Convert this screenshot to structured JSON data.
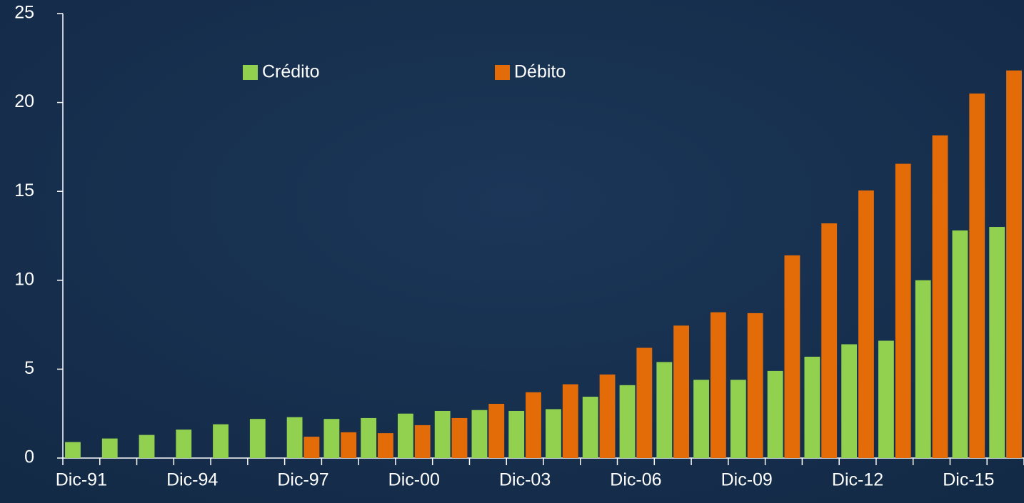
{
  "chart_data": {
    "type": "bar",
    "categories": [
      "Dic-91",
      null,
      null,
      "Dic-94",
      null,
      null,
      "Dic-97",
      null,
      null,
      "Dic-00",
      null,
      null,
      "Dic-03",
      null,
      null,
      "Dic-06",
      null,
      null,
      "Dic-09",
      null,
      null,
      "Dic-12",
      null,
      null,
      "Dic-15",
      null
    ],
    "series": [
      {
        "name": "Crédito",
        "color": "#92d050",
        "values": [
          0.9,
          1.1,
          1.3,
          1.6,
          1.9,
          2.2,
          2.3,
          2.2,
          2.25,
          2.5,
          2.65,
          2.7,
          2.65,
          2.75,
          3.45,
          4.1,
          5.4,
          4.4,
          4.4,
          4.9,
          5.7,
          6.4,
          6.6,
          10.0,
          12.8,
          13.0
        ]
      },
      {
        "name": "Débito",
        "color": "#e36c09",
        "values": [
          null,
          null,
          null,
          null,
          null,
          null,
          1.2,
          1.45,
          1.4,
          1.85,
          2.25,
          3.05,
          3.7,
          4.15,
          4.7,
          6.2,
          7.45,
          8.2,
          8.15,
          11.4,
          13.2,
          15.05,
          16.55,
          18.15,
          20.5,
          21.8
        ]
      }
    ],
    "ylim": [
      0,
      25
    ],
    "yticks": [
      0,
      5,
      10,
      15,
      20,
      25
    ],
    "grid": false,
    "legend": "top"
  }
}
